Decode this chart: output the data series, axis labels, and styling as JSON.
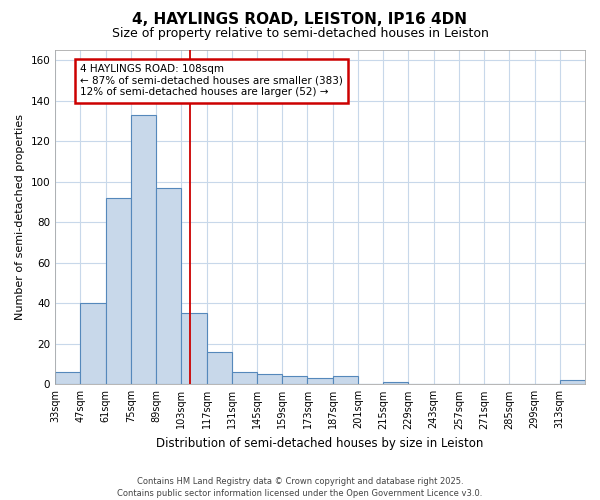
{
  "title": "4, HAYLINGS ROAD, LEISTON, IP16 4DN",
  "subtitle": "Size of property relative to semi-detached houses in Leiston",
  "xlabel": "Distribution of semi-detached houses by size in Leiston",
  "ylabel": "Number of semi-detached properties",
  "bin_labels": [
    "33sqm",
    "47sqm",
    "61sqm",
    "75sqm",
    "89sqm",
    "103sqm",
    "117sqm",
    "131sqm",
    "145sqm",
    "159sqm",
    "173sqm",
    "187sqm",
    "201sqm",
    "215sqm",
    "229sqm",
    "243sqm",
    "257sqm",
    "271sqm",
    "285sqm",
    "299sqm",
    "313sqm"
  ],
  "bin_left_edges": [
    33,
    47,
    61,
    75,
    89,
    103,
    117,
    131,
    145,
    159,
    173,
    187,
    201,
    215,
    229,
    243,
    257,
    271,
    285,
    299,
    313
  ],
  "bin_width": 14,
  "bar_heights": [
    6,
    40,
    92,
    133,
    97,
    35,
    16,
    6,
    5,
    4,
    3,
    4,
    0,
    1,
    0,
    0,
    0,
    0,
    0,
    0,
    2
  ],
  "bar_color": "#c8d8ea",
  "bar_edge_color": "#5588bb",
  "grid_color": "#c8d8ea",
  "property_line_x": 108,
  "property_line_color": "#cc0000",
  "annotation_line1": "4 HAYLINGS ROAD: 108sqm",
  "annotation_line2": "← 87% of semi-detached houses are smaller (383)",
  "annotation_line3": "12% of semi-detached houses are larger (52) →",
  "annotation_box_color": "#cc0000",
  "ylim": [
    0,
    165
  ],
  "yticks": [
    0,
    20,
    40,
    60,
    80,
    100,
    120,
    140,
    160
  ],
  "footer_text": "Contains HM Land Registry data © Crown copyright and database right 2025.\nContains public sector information licensed under the Open Government Licence v3.0.",
  "background_color": "#ffffff",
  "plot_background_color": "#ffffff",
  "title_fontsize": 11,
  "subtitle_fontsize": 9
}
